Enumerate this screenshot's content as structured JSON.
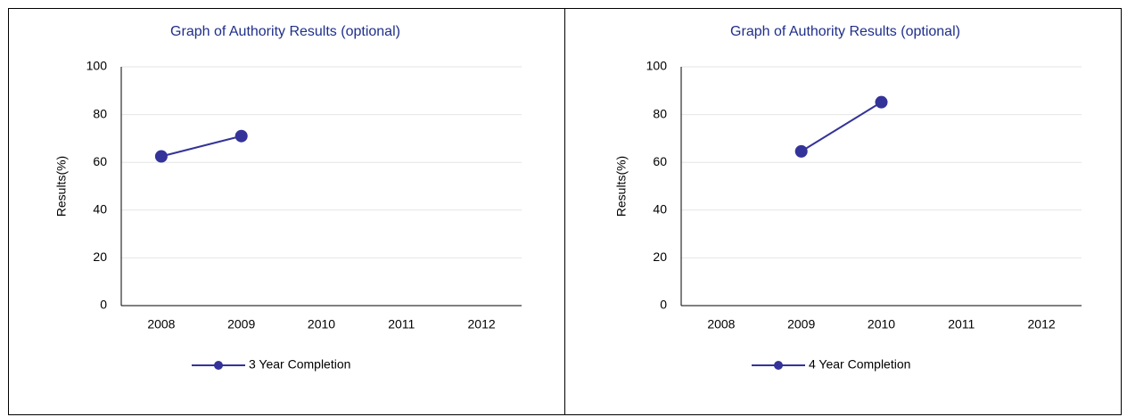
{
  "chart_data": [
    {
      "type": "line",
      "title": "Graph of Authority Results (optional)",
      "y_label": "Results(%)",
      "categories": [
        "2008",
        "2009",
        "2010",
        "2011",
        "2012"
      ],
      "series": [
        {
          "name": "3 Year Completion",
          "color": "#333399",
          "values": [
            62.5,
            71,
            null,
            null,
            null
          ]
        }
      ],
      "ylim": [
        0,
        100
      ],
      "yticks": [
        0,
        20,
        40,
        60,
        80,
        100
      ],
      "grid": true,
      "legend": "bottom"
    },
    {
      "type": "line",
      "title": "Graph of Authority Results (optional)",
      "y_label": "Results(%)",
      "categories": [
        "2008",
        "2009",
        "2010",
        "2011",
        "2012"
      ],
      "series": [
        {
          "name": "4 Year Completion",
          "color": "#333399",
          "values": [
            null,
            64.6,
            85.2,
            null,
            null
          ]
        }
      ],
      "ylim": [
        0,
        100
      ],
      "yticks": [
        0,
        20,
        40,
        60,
        80,
        100
      ],
      "grid": true,
      "legend": "bottom"
    }
  ]
}
